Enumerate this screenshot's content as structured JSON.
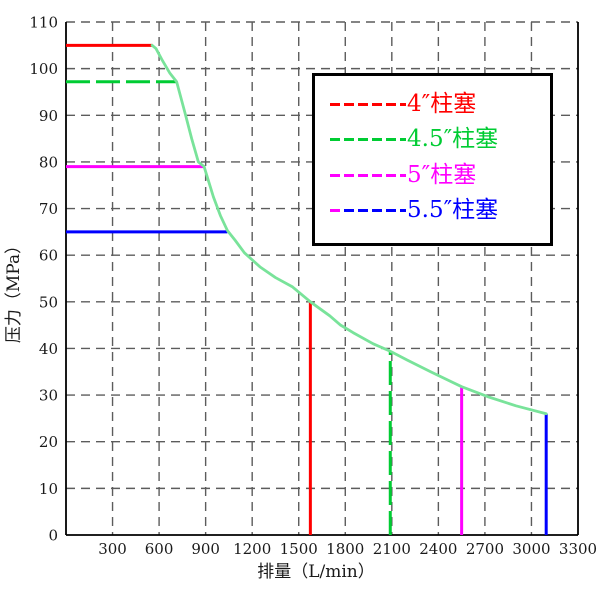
{
  "figure": {
    "background_color": "#ffffff",
    "grid_color": "#5c5c5c",
    "axis_line_color": "#000000",
    "tick_label_color": "#1a1a1a"
  },
  "chart_data": {
    "type": "line",
    "title": "",
    "xlabel": "排量（L/min）",
    "ylabel": "压力（MPa）",
    "xlim": [
      0,
      3300
    ],
    "ylim": [
      0,
      110
    ],
    "x_ticks": [
      300,
      600,
      900,
      1200,
      1500,
      1800,
      2100,
      2400,
      2700,
      3000,
      3300
    ],
    "y_ticks": [
      0,
      10,
      20,
      30,
      40,
      50,
      60,
      70,
      80,
      90,
      100,
      110
    ],
    "grid": "dashed",
    "envelope_curve": {
      "color": "#79E39A",
      "points": [
        [
          555,
          105
        ],
        [
          580,
          104.3
        ],
        [
          617,
          102
        ],
        [
          670,
          99
        ],
        [
          713,
          97.2
        ],
        [
          767,
          90.5
        ],
        [
          810,
          85
        ],
        [
          853,
          80
        ],
        [
          890,
          79
        ],
        [
          950,
          72.5
        ],
        [
          995,
          68.5
        ],
        [
          1040,
          65.3
        ],
        [
          1090,
          63.2
        ],
        [
          1150,
          60.5
        ],
        [
          1250,
          57.5
        ],
        [
          1350,
          55.2
        ],
        [
          1460,
          53.2
        ],
        [
          1575,
          50
        ],
        [
          1700,
          47
        ],
        [
          1770,
          45
        ],
        [
          1850,
          43.4
        ],
        [
          1980,
          41
        ],
        [
          2090,
          39.4
        ],
        [
          2200,
          37.5
        ],
        [
          2350,
          35
        ],
        [
          2550,
          31.8
        ],
        [
          2715,
          29.7
        ],
        [
          2900,
          27.7
        ],
        [
          3095,
          26
        ]
      ]
    },
    "series": [
      {
        "name": "4″柱塞",
        "color": "#FF0000",
        "line_style": "solid",
        "max_pressure_mpa": 105,
        "pressure_line_x_end": 558,
        "max_flow_lmin": 1575,
        "flow_line_y_top": 50
      },
      {
        "name": "4.5″柱塞",
        "color": "#00CC33",
        "line_style": "dashed",
        "max_pressure_mpa": 97.2,
        "pressure_line_x_end": 713,
        "max_flow_lmin": 2090,
        "flow_line_y_top": 39.4
      },
      {
        "name": "5″柱塞",
        "color": "#FF00FF",
        "line_style": "solid",
        "max_pressure_mpa": 79,
        "pressure_line_x_end": 895,
        "max_flow_lmin": 2550,
        "flow_line_y_top": 31.8
      },
      {
        "name": "5.5″柱塞",
        "color": "#0000FF",
        "line_style": "solid",
        "max_pressure_mpa": 65,
        "pressure_line_x_end": 1040,
        "max_flow_lmin": 3095,
        "flow_line_y_top": 26
      }
    ],
    "legend": {
      "position": "upper right",
      "entries": [
        {
          "label": "4″柱塞",
          "color": "#FF0000"
        },
        {
          "label": "4.5″柱塞",
          "color": "#00CC33"
        },
        {
          "label": "5″柱塞",
          "color": "#FF00FF"
        },
        {
          "label": "5.5″柱塞",
          "color": "#0000FF",
          "sample_prefix_color": "#FF00FF"
        }
      ]
    }
  }
}
